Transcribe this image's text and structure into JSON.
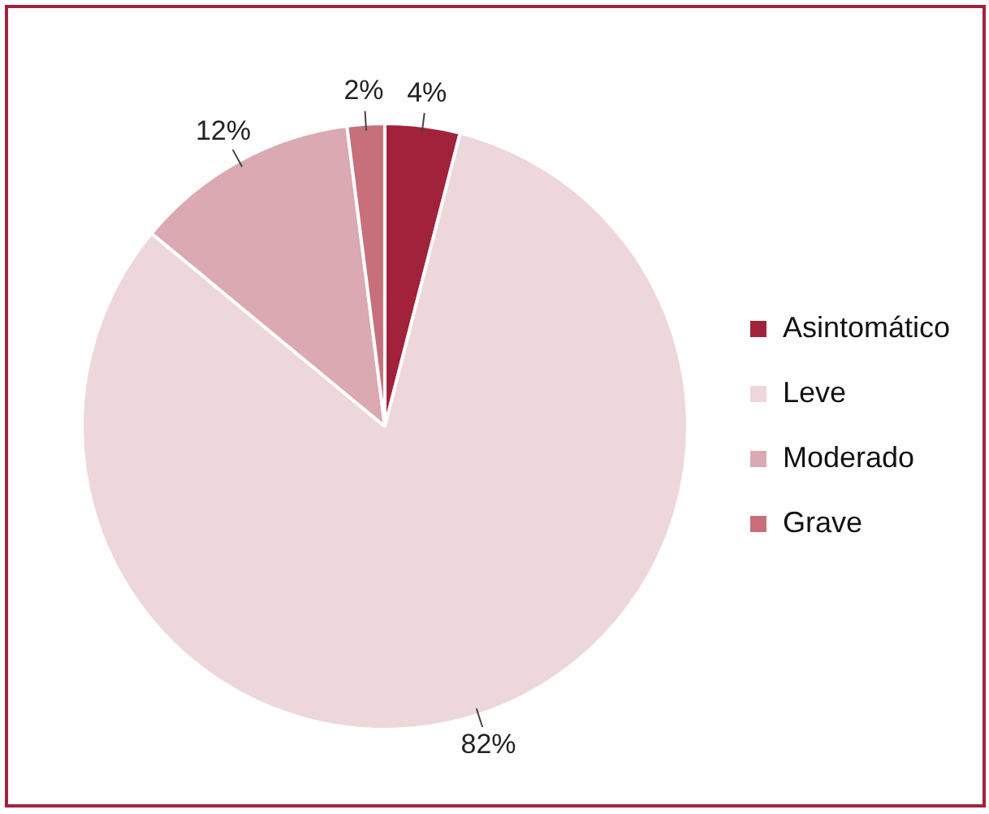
{
  "chart_data": {
    "type": "pie",
    "categories": [
      "Asintomático",
      "Leve",
      "Moderado",
      "Grave"
    ],
    "values": [
      4,
      82,
      12,
      2
    ],
    "colors": [
      "#a3223b",
      "#eed7db",
      "#dba9b1",
      "#c7707c"
    ],
    "value_labels": [
      "4%",
      "82%",
      "12%",
      "2%"
    ],
    "legend": "right"
  }
}
